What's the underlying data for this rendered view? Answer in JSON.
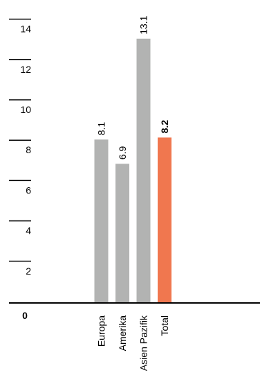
{
  "chart_data": {
    "type": "bar",
    "categories": [
      "Europa",
      "Amerika",
      "Asien Pazifik",
      "Total"
    ],
    "values": [
      8.1,
      6.9,
      13.1,
      8.2
    ],
    "value_labels": [
      "8.1",
      "6.9",
      "13.1",
      "8.2"
    ],
    "highlight_index": 3,
    "y_ticks": [
      {
        "value": 0,
        "label": "0"
      },
      {
        "value": 2,
        "label": "2"
      },
      {
        "value": 4,
        "label": "4"
      },
      {
        "value": 6,
        "label": "6"
      },
      {
        "value": 8,
        "label": "8"
      },
      {
        "value": 10,
        "label": "10"
      },
      {
        "value": 12,
        "label": "12"
      },
      {
        "value": 14,
        "label": "14"
      }
    ],
    "ylim": [
      0,
      14
    ],
    "grid": false,
    "colors": {
      "bar": "#b2b3b2",
      "highlight": "#f0774f",
      "axis": "#000000",
      "text": "#000000"
    }
  }
}
